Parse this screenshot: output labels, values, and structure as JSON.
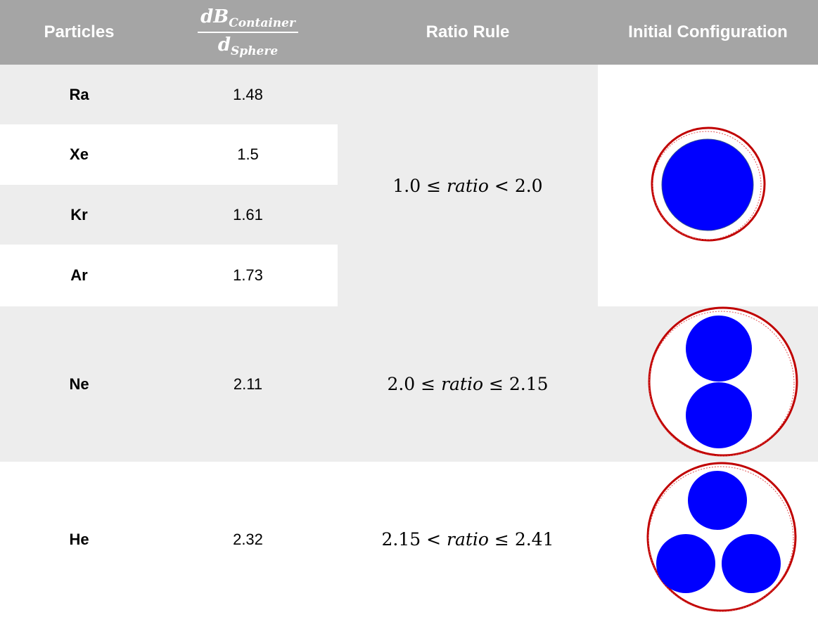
{
  "header": {
    "particles": "Particles",
    "ratio": {
      "numerator": "dB",
      "numerator_sub": "Container",
      "denominator": "d",
      "denominator_sub": "Sphere"
    },
    "rule": "Ratio Rule",
    "config": "Initial Configuration"
  },
  "rows": [
    {
      "particle": "Ra",
      "ratio": "1.48"
    },
    {
      "particle": "Xe",
      "ratio": "1.5"
    },
    {
      "particle": "Kr",
      "ratio": "1.61"
    },
    {
      "particle": "Ar",
      "ratio": "1.73"
    },
    {
      "particle": "Ne",
      "ratio": "2.11"
    },
    {
      "particle": "He",
      "ratio": "2.32"
    }
  ],
  "rules": [
    {
      "lower": "1.0",
      "op1": "≤",
      "var": "ratio",
      "op2": "<",
      "upper": "2.0"
    },
    {
      "lower": "2.0",
      "op1": "≤",
      "var": "ratio",
      "op2": "≤",
      "upper": "2.15"
    },
    {
      "lower": "2.15",
      "op1": "<",
      "var": "ratio",
      "op2": "≤",
      "upper": "2.41"
    }
  ]
}
